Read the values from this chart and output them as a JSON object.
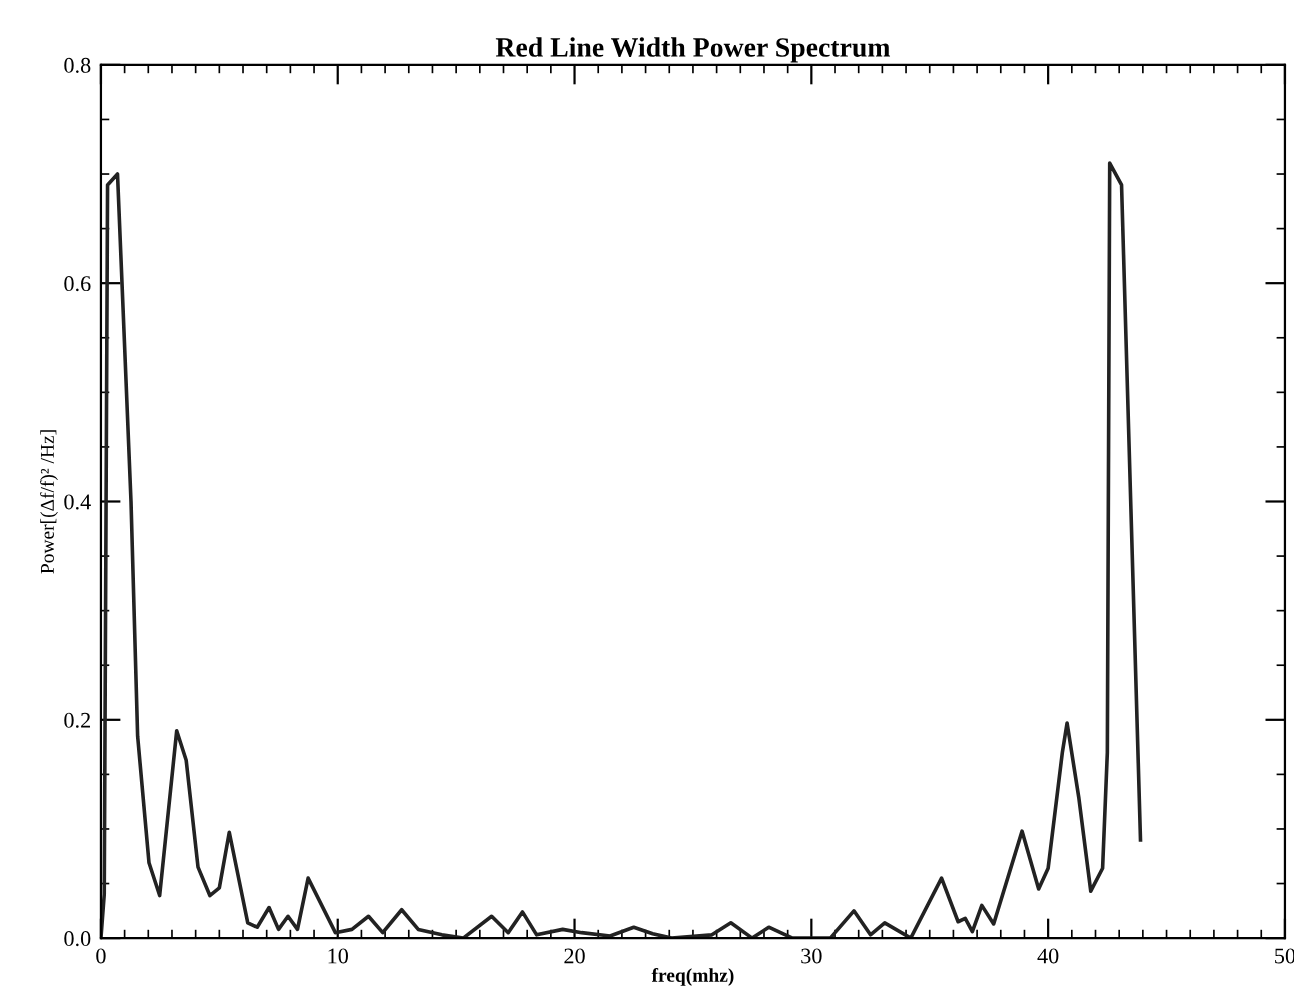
{
  "chart_data": {
    "type": "line",
    "title": "Red Line Width Power Spectrum",
    "xlabel": "freq(mhz)",
    "ylabel": "Power[(Δf/f)² /Hz]",
    "x": [
      0,
      0.14,
      0.28,
      0.7,
      1.27,
      1.55,
      2.03,
      2.48,
      3.2,
      3.6,
      4.1,
      4.6,
      5.0,
      5.42,
      6.2,
      6.6,
      7.1,
      7.5,
      7.9,
      8.3,
      8.75,
      9.9,
      10.6,
      11.3,
      11.9,
      12.7,
      13.4,
      14.4,
      15.3,
      16.5,
      17.2,
      17.8,
      18.4,
      19.5,
      20.3,
      21.5,
      22.5,
      23.3,
      24.1,
      25.8,
      26.6,
      27.5,
      28.2,
      29.2,
      29.9,
      30.8,
      31.8,
      32.5,
      33.1,
      34.2,
      35.5,
      36.2,
      36.5,
      36.8,
      37.2,
      37.7,
      38.9,
      39.6,
      40.0,
      40.6,
      40.8,
      41.3,
      41.8,
      42.3,
      42.5,
      42.6,
      43.1,
      43.9
    ],
    "series": [
      {
        "color": "#222222",
        "values": [
          0.0,
          0.04,
          0.69,
          0.7,
          0.4,
          0.185,
          0.069,
          0.039,
          0.19,
          0.163,
          0.065,
          0.039,
          0.046,
          0.097,
          0.014,
          0.01,
          0.028,
          0.008,
          0.02,
          0.008,
          0.055,
          0.005,
          0.008,
          0.02,
          0.005,
          0.026,
          0.008,
          0.003,
          0.0,
          0.02,
          0.005,
          0.024,
          0.003,
          0.008,
          0.005,
          0.002,
          0.01,
          0.004,
          0.0,
          0.003,
          0.014,
          0.0,
          0.01,
          0.0,
          0.0,
          0.0,
          0.025,
          0.003,
          0.014,
          0.0,
          0.055,
          0.015,
          0.018,
          0.006,
          0.03,
          0.013,
          0.098,
          0.045,
          0.064,
          0.17,
          0.197,
          0.128,
          0.043,
          0.064,
          0.17,
          0.71,
          0.69,
          0.09
        ]
      }
    ],
    "xlim": [
      0,
      50
    ],
    "ylim": [
      0,
      0.8
    ],
    "xticks": [
      0,
      10,
      20,
      30,
      40,
      50
    ],
    "yticks": [
      {
        "value": 0,
        "label": "0.0"
      },
      {
        "value": 0.2,
        "label": "0.2"
      },
      {
        "value": 0.4,
        "label": "0.4"
      },
      {
        "value": 0.6,
        "label": "0.6"
      },
      {
        "value": 0.8,
        "label": "0.8"
      }
    ],
    "grid": false,
    "marker": "none",
    "line_style": "solid"
  }
}
